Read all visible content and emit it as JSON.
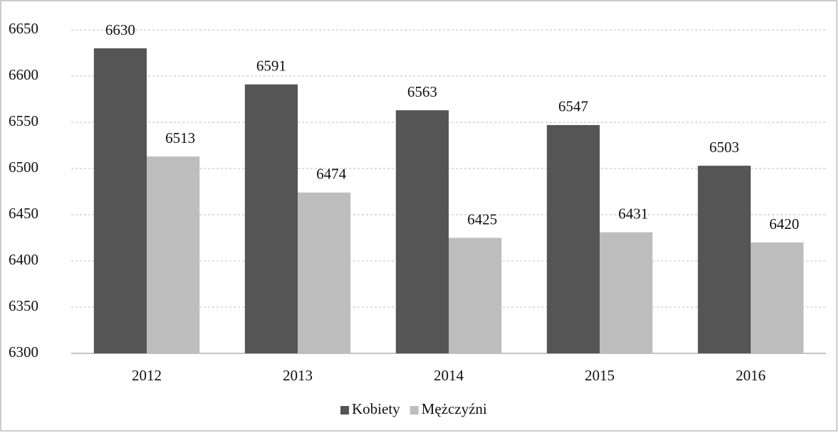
{
  "chart_data": {
    "type": "bar",
    "categories": [
      "2012",
      "2013",
      "2014",
      "2015",
      "2016"
    ],
    "series": [
      {
        "name": "Kobiety",
        "color": "#555555",
        "values": [
          6630,
          6591,
          6563,
          6547,
          6503
        ]
      },
      {
        "name": "Mężczyźni",
        "color": "#bdbdbd",
        "values": [
          6513,
          6474,
          6425,
          6431,
          6420
        ]
      }
    ],
    "ylim": [
      6300,
      6650
    ],
    "yticks": [
      6300,
      6350,
      6400,
      6450,
      6500,
      6550,
      6600,
      6650
    ],
    "grid": true,
    "legend": "bottom"
  }
}
